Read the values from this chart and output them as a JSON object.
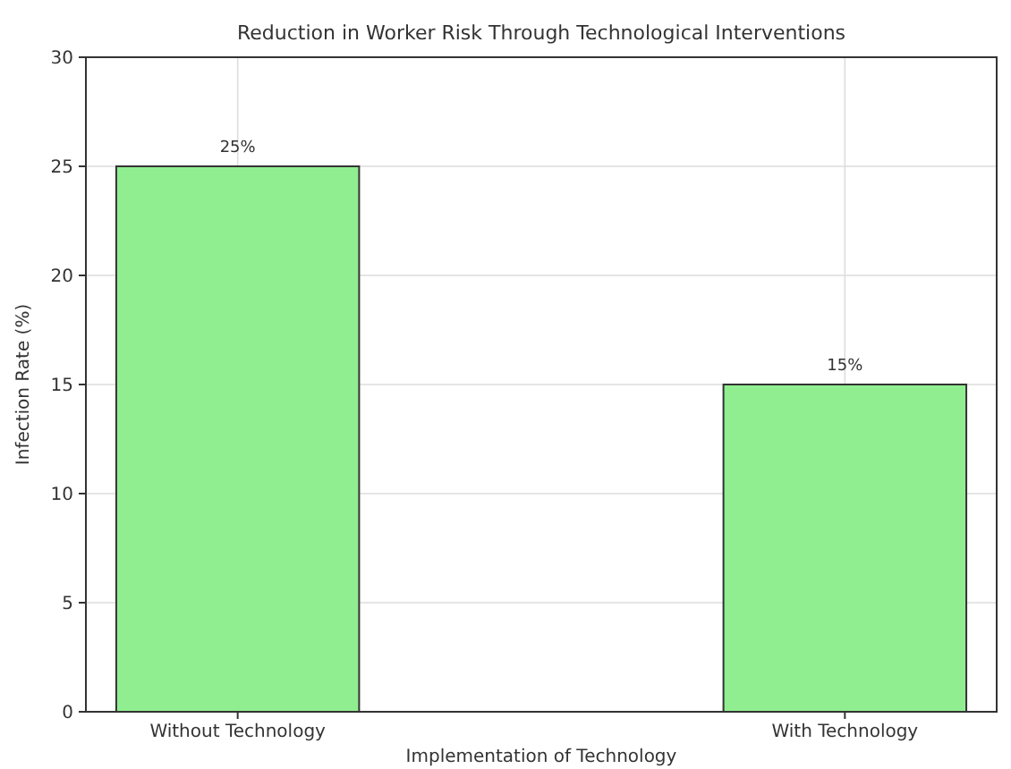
{
  "chart_data": {
    "type": "bar",
    "title": "Reduction in Worker Risk Through Technological Interventions",
    "xlabel": "Implementation of Technology",
    "ylabel": "Infection Rate (%)",
    "categories": [
      "Without Technology",
      "With Technology"
    ],
    "values": [
      25,
      15
    ],
    "value_labels": [
      "25%",
      "15%"
    ],
    "color": "#90ee90",
    "ylim": [
      0,
      30
    ],
    "yticks": [
      0,
      5,
      10,
      15,
      20,
      25,
      30
    ],
    "grid": true
  }
}
